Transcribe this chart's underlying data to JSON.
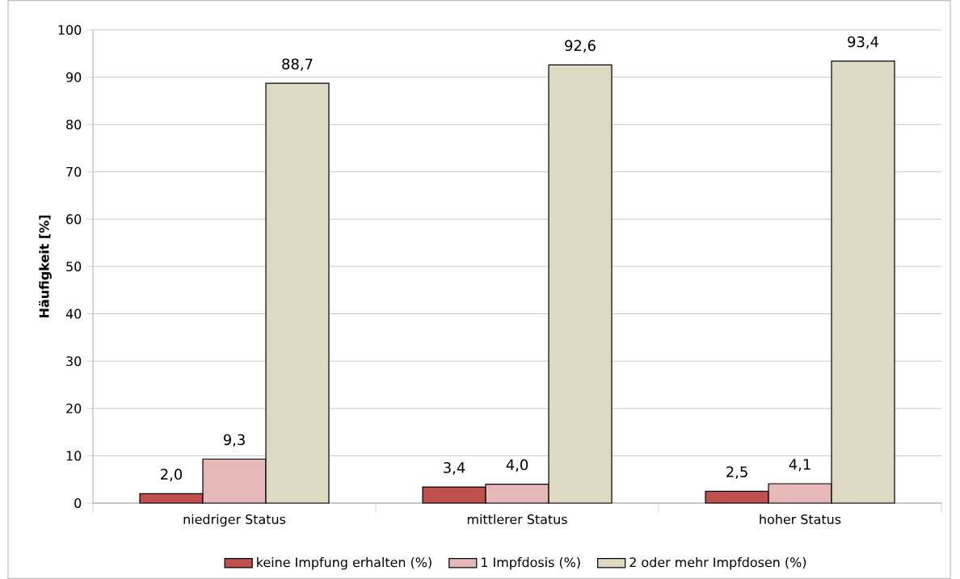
{
  "chart_data": {
    "type": "bar",
    "ylabel": "Häufigkeit [%]",
    "categories": [
      "niedriger Status",
      "mittlerer Status",
      "hoher Status"
    ],
    "series": [
      {
        "name": "keine Impfung erhalten (%)",
        "color": "#c0504d",
        "values": [
          2.0,
          3.4,
          2.5
        ],
        "value_labels": [
          "2,0",
          "3,4",
          "2,5"
        ]
      },
      {
        "name": "1 Impfdosis (%)",
        "color": "#e6b9b8",
        "values": [
          9.3,
          4.0,
          4.1
        ],
        "value_labels": [
          "9,3",
          "4,0",
          "4,1"
        ]
      },
      {
        "name": "2 oder mehr Impfdosen (%)",
        "color": "#ddd9c3",
        "values": [
          88.7,
          92.6,
          93.4
        ],
        "value_labels": [
          "88,7",
          "92,6",
          "93,4"
        ]
      }
    ],
    "ylim": [
      0,
      100
    ],
    "yticks": [
      0,
      10,
      20,
      30,
      40,
      50,
      60,
      70,
      80,
      90,
      100
    ],
    "grid": "y",
    "legend": "bottom"
  }
}
